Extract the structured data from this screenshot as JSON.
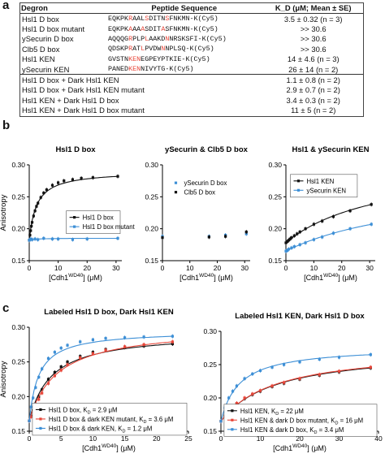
{
  "panel_labels": {
    "a": "a",
    "b": "b",
    "c": "c"
  },
  "table": {
    "headers": [
      "Degron",
      "Peptide Sequence",
      "K_D (μM; Mean ± SE)"
    ],
    "rows": [
      {
        "degron": "Hsl1 D box",
        "seq": [
          [
            "EQKPK",
            ""
          ],
          [
            "R",
            "r"
          ],
          [
            "AAL",
            ""
          ],
          [
            "S",
            "r"
          ],
          [
            "DITN",
            ""
          ],
          [
            "S",
            "r"
          ],
          [
            "FNKMN-K(Cy5)",
            ""
          ]
        ],
        "kd": "3.5 ± 0.32 (n = 3)"
      },
      {
        "degron": "Hsl1 D box mutant",
        "seq": [
          [
            "EQKPK",
            ""
          ],
          [
            "A",
            "r"
          ],
          [
            "AA",
            ""
          ],
          [
            "A",
            "r"
          ],
          [
            "SDIT",
            ""
          ],
          [
            "A",
            "r"
          ],
          [
            "SFNKMN-K(Cy5)",
            ""
          ]
        ],
        "kd": ">> 30.6"
      },
      {
        "degron": "ySecurin D box",
        "seq": [
          [
            "AQQQG",
            ""
          ],
          [
            "R",
            "r"
          ],
          [
            "PLP",
            ""
          ],
          [
            "L",
            "r"
          ],
          [
            "AAKD",
            ""
          ],
          [
            "N",
            "r"
          ],
          [
            "NRSKSFI-K(Cy5)",
            ""
          ]
        ],
        "kd": ">> 30.6"
      },
      {
        "degron": "Clb5 D box",
        "seq": [
          [
            "QDSKP",
            ""
          ],
          [
            "R",
            "r"
          ],
          [
            "AT",
            ""
          ],
          [
            "L",
            "r"
          ],
          [
            "PVDW",
            ""
          ],
          [
            "N",
            "r"
          ],
          [
            "NPLSQ-K(Cy5)",
            ""
          ]
        ],
        "kd": ">> 30.6"
      },
      {
        "degron": "Hsl1 KEN",
        "seq": [
          [
            "GVSTN",
            ""
          ],
          [
            "KEN",
            "r"
          ],
          [
            "EGPEYPTKIE-K(Cy5)",
            ""
          ]
        ],
        "kd": "14 ± 4.6 (n = 3)"
      },
      {
        "degron": "ySecurin KEN",
        "seq": [
          [
            "PANED",
            ""
          ],
          [
            "KEN",
            "r"
          ],
          [
            "NIVYTG-K(Cy5)",
            ""
          ]
        ],
        "kd": "26 ± 14 (n = 2)"
      },
      {
        "degron": "Hsl1 D box + Dark Hsl1 KEN",
        "seq": [],
        "kd": "1.1 ± 0.8 (n = 2)"
      },
      {
        "degron": "Hsl1 D box + Dark Hsl1 KEN mutant",
        "seq": [],
        "kd": "2.9 ± 0.7 (n = 2)"
      },
      {
        "degron": "Hsl1 KEN + Dark Hsl1 D box",
        "seq": [],
        "kd": "3.4 ± 0.3 (n = 2)"
      },
      {
        "degron": "Hsl1 KEN + Dark Hsl1 D box mutant",
        "seq": [],
        "kd": "11 ± 5 (n = 2)"
      }
    ]
  },
  "text": {
    "anisotropy": "Anisotropy",
    "cdh1": "[Cdh1",
    "wd40": "WD40",
    "um": "] (μM)",
    "um_close": ") (μM)",
    "cdh1_paren": "[Cdh1"
  },
  "chart_data": [
    {
      "type": "scatter",
      "title": "Hsl1 D box",
      "xlabel": "[Cdh1WD40] (μM)",
      "ylabel": "Anisotropy",
      "xlim": [
        0,
        32
      ],
      "ylim": [
        0.15,
        0.3
      ],
      "xticks": [
        0,
        10,
        20,
        30
      ],
      "yticks": [
        0.15,
        0.2,
        0.25,
        0.3
      ],
      "legend": "middle-right",
      "series": [
        {
          "name": "Hsl1 D box",
          "color": "#111111",
          "x": [
            0,
            0.25,
            0.5,
            0.75,
            1.0,
            1.5,
            2,
            2.5,
            3,
            4,
            5,
            6,
            8,
            10,
            12,
            15,
            18,
            22,
            30.6
          ],
          "y": [
            0.182,
            0.19,
            0.197,
            0.204,
            0.21,
            0.22,
            0.228,
            0.235,
            0.24,
            0.249,
            0.256,
            0.261,
            0.268,
            0.272,
            0.275,
            0.277,
            0.279,
            0.28,
            0.282
          ]
        },
        {
          "name": "Hsl1 D box mutant",
          "color": "#3d8fd6",
          "x": [
            0,
            0.5,
            1,
            2,
            3,
            5,
            8,
            10,
            15,
            20,
            30.6
          ],
          "y": [
            0.182,
            0.184,
            0.183,
            0.184,
            0.183,
            0.185,
            0.184,
            0.184,
            0.183,
            0.184,
            0.185
          ]
        }
      ]
    },
    {
      "type": "scatter",
      "title": "ySecurin & Clb5 D box",
      "xlabel": "[Cdh1WD40] (μM)",
      "ylabel": "",
      "xlim": [
        0,
        32
      ],
      "ylim": [
        0.15,
        0.3
      ],
      "xticks": [
        0,
        10,
        20,
        30
      ],
      "yticks": [
        0.15,
        0.2,
        0.25,
        0.3
      ],
      "legend": "upper-left",
      "series": [
        {
          "name": "ySecurin D box",
          "color": "#3d8fd6",
          "x": [
            0,
            17,
            23,
            30.6
          ],
          "y": [
            0.188,
            0.188,
            0.19,
            0.192
          ]
        },
        {
          "name": "Clb5 D box",
          "color": "#111111",
          "x": [
            0,
            17,
            23,
            30.6
          ],
          "y": [
            0.186,
            0.187,
            0.188,
            0.195
          ]
        }
      ]
    },
    {
      "type": "scatter",
      "title": "Hsl1 & ySecurin KEN",
      "xlabel": "[Cdh1WD40] (μM)",
      "ylabel": "",
      "xlim": [
        0,
        32
      ],
      "ylim": [
        0.15,
        0.3
      ],
      "xticks": [
        0,
        10,
        20,
        30
      ],
      "yticks": [
        0.15,
        0.2,
        0.25,
        0.3
      ],
      "legend": "top-left",
      "series": [
        {
          "name": "Hsl1 KEN",
          "color": "#111111",
          "x": [
            0,
            0.5,
            1,
            1.5,
            2,
            3,
            4,
            5,
            7,
            10,
            13,
            17,
            23,
            30.6
          ],
          "y": [
            0.178,
            0.18,
            0.182,
            0.184,
            0.186,
            0.189,
            0.192,
            0.195,
            0.2,
            0.207,
            0.212,
            0.219,
            0.228,
            0.238
          ]
        },
        {
          "name": "ySecurin KEN",
          "color": "#3d8fd6",
          "x": [
            0,
            0.5,
            1,
            2,
            3,
            5,
            7,
            10,
            13,
            17,
            23,
            30.6
          ],
          "y": [
            0.165,
            0.166,
            0.168,
            0.17,
            0.172,
            0.175,
            0.178,
            0.183,
            0.187,
            0.193,
            0.2,
            0.207
          ]
        }
      ]
    },
    {
      "type": "scatter",
      "title": "Labeled Hsl1 D box, Dark Hsl1 KEN",
      "xlabel": "[Cdh1WD40] (μM)",
      "ylabel": "Anisotropy",
      "xlim": [
        0,
        25
      ],
      "ylim": [
        0.15,
        0.3
      ],
      "xticks": [
        0,
        5,
        10,
        15,
        20,
        25
      ],
      "yticks": [
        0.15,
        0.2,
        0.25,
        0.3
      ],
      "legend": "bottom-right",
      "series": [
        {
          "name": "Hsl1 D box, K_D = 2.9 μM",
          "color": "#111111",
          "x": [
            0,
            0.3,
            0.6,
            1,
            1.5,
            2,
            3,
            4,
            5,
            6,
            8,
            10,
            12,
            15,
            18,
            22.5
          ],
          "y": [
            0.165,
            0.172,
            0.18,
            0.189,
            0.2,
            0.21,
            0.225,
            0.235,
            0.243,
            0.25,
            0.258,
            0.264,
            0.268,
            0.271,
            0.273,
            0.276
          ]
        },
        {
          "name": "Hsl1 D box & dark KEN mutant, K_D = 3.6 μM",
          "color": "#e8473a",
          "x": [
            0,
            0.3,
            0.6,
            1,
            1.5,
            2,
            3,
            4,
            5,
            6,
            8,
            10,
            12,
            15,
            18,
            22.5
          ],
          "y": [
            0.165,
            0.171,
            0.178,
            0.186,
            0.196,
            0.205,
            0.219,
            0.23,
            0.238,
            0.246,
            0.256,
            0.262,
            0.267,
            0.272,
            0.275,
            0.279
          ]
        },
        {
          "name": "Hsl1 D box & dark KEN, K_D = 1.2 μM",
          "color": "#3d8fd6",
          "x": [
            0,
            0.3,
            0.6,
            1,
            1.5,
            2,
            3,
            4,
            5,
            6,
            8,
            10,
            12,
            15,
            18,
            22.5
          ],
          "y": [
            0.165,
            0.185,
            0.198,
            0.213,
            0.228,
            0.24,
            0.255,
            0.264,
            0.27,
            0.274,
            0.279,
            0.282,
            0.284,
            0.285,
            0.286,
            0.287
          ]
        }
      ]
    },
    {
      "type": "scatter",
      "title": "Labeled Hsl1 KEN, Dark Hsl1 D box",
      "xlabel": "[Cdh1WD40] (μM)",
      "ylabel": "",
      "xlim": [
        0,
        40
      ],
      "ylim": [
        0.15,
        0.3
      ],
      "xticks": [
        0,
        10,
        20,
        30,
        40
      ],
      "yticks": [
        0.15,
        0.2,
        0.25,
        0.3
      ],
      "legend": "bottom-right",
      "series": [
        {
          "name": "Hsl1 KEN, K_D = 22 μM",
          "color": "#111111",
          "x": [
            0,
            1,
            2,
            3,
            4,
            6,
            8,
            10,
            13,
            16,
            20,
            25,
            30,
            38
          ],
          "y": [
            0.165,
            0.173,
            0.18,
            0.186,
            0.191,
            0.199,
            0.205,
            0.21,
            0.217,
            0.222,
            0.228,
            0.234,
            0.239,
            0.245
          ]
        },
        {
          "name": "Hsl1 KEN & dark D box mutant, K_D = 16 μM",
          "color": "#e8473a",
          "x": [
            0,
            1,
            2,
            3,
            4,
            6,
            8,
            10,
            13,
            16,
            20,
            25,
            30,
            38
          ],
          "y": [
            0.165,
            0.172,
            0.18,
            0.186,
            0.192,
            0.2,
            0.206,
            0.211,
            0.218,
            0.223,
            0.229,
            0.235,
            0.24,
            0.246
          ]
        },
        {
          "name": "Hsl1 KEN & dark D box, K_D = 3.4 μM",
          "color": "#3d8fd6",
          "x": [
            0,
            1,
            2,
            3,
            4,
            6,
            8,
            10,
            13,
            16,
            20,
            25,
            30,
            38
          ],
          "y": [
            0.165,
            0.185,
            0.2,
            0.21,
            0.218,
            0.229,
            0.236,
            0.241,
            0.246,
            0.25,
            0.254,
            0.258,
            0.261,
            0.265
          ]
        }
      ]
    }
  ]
}
